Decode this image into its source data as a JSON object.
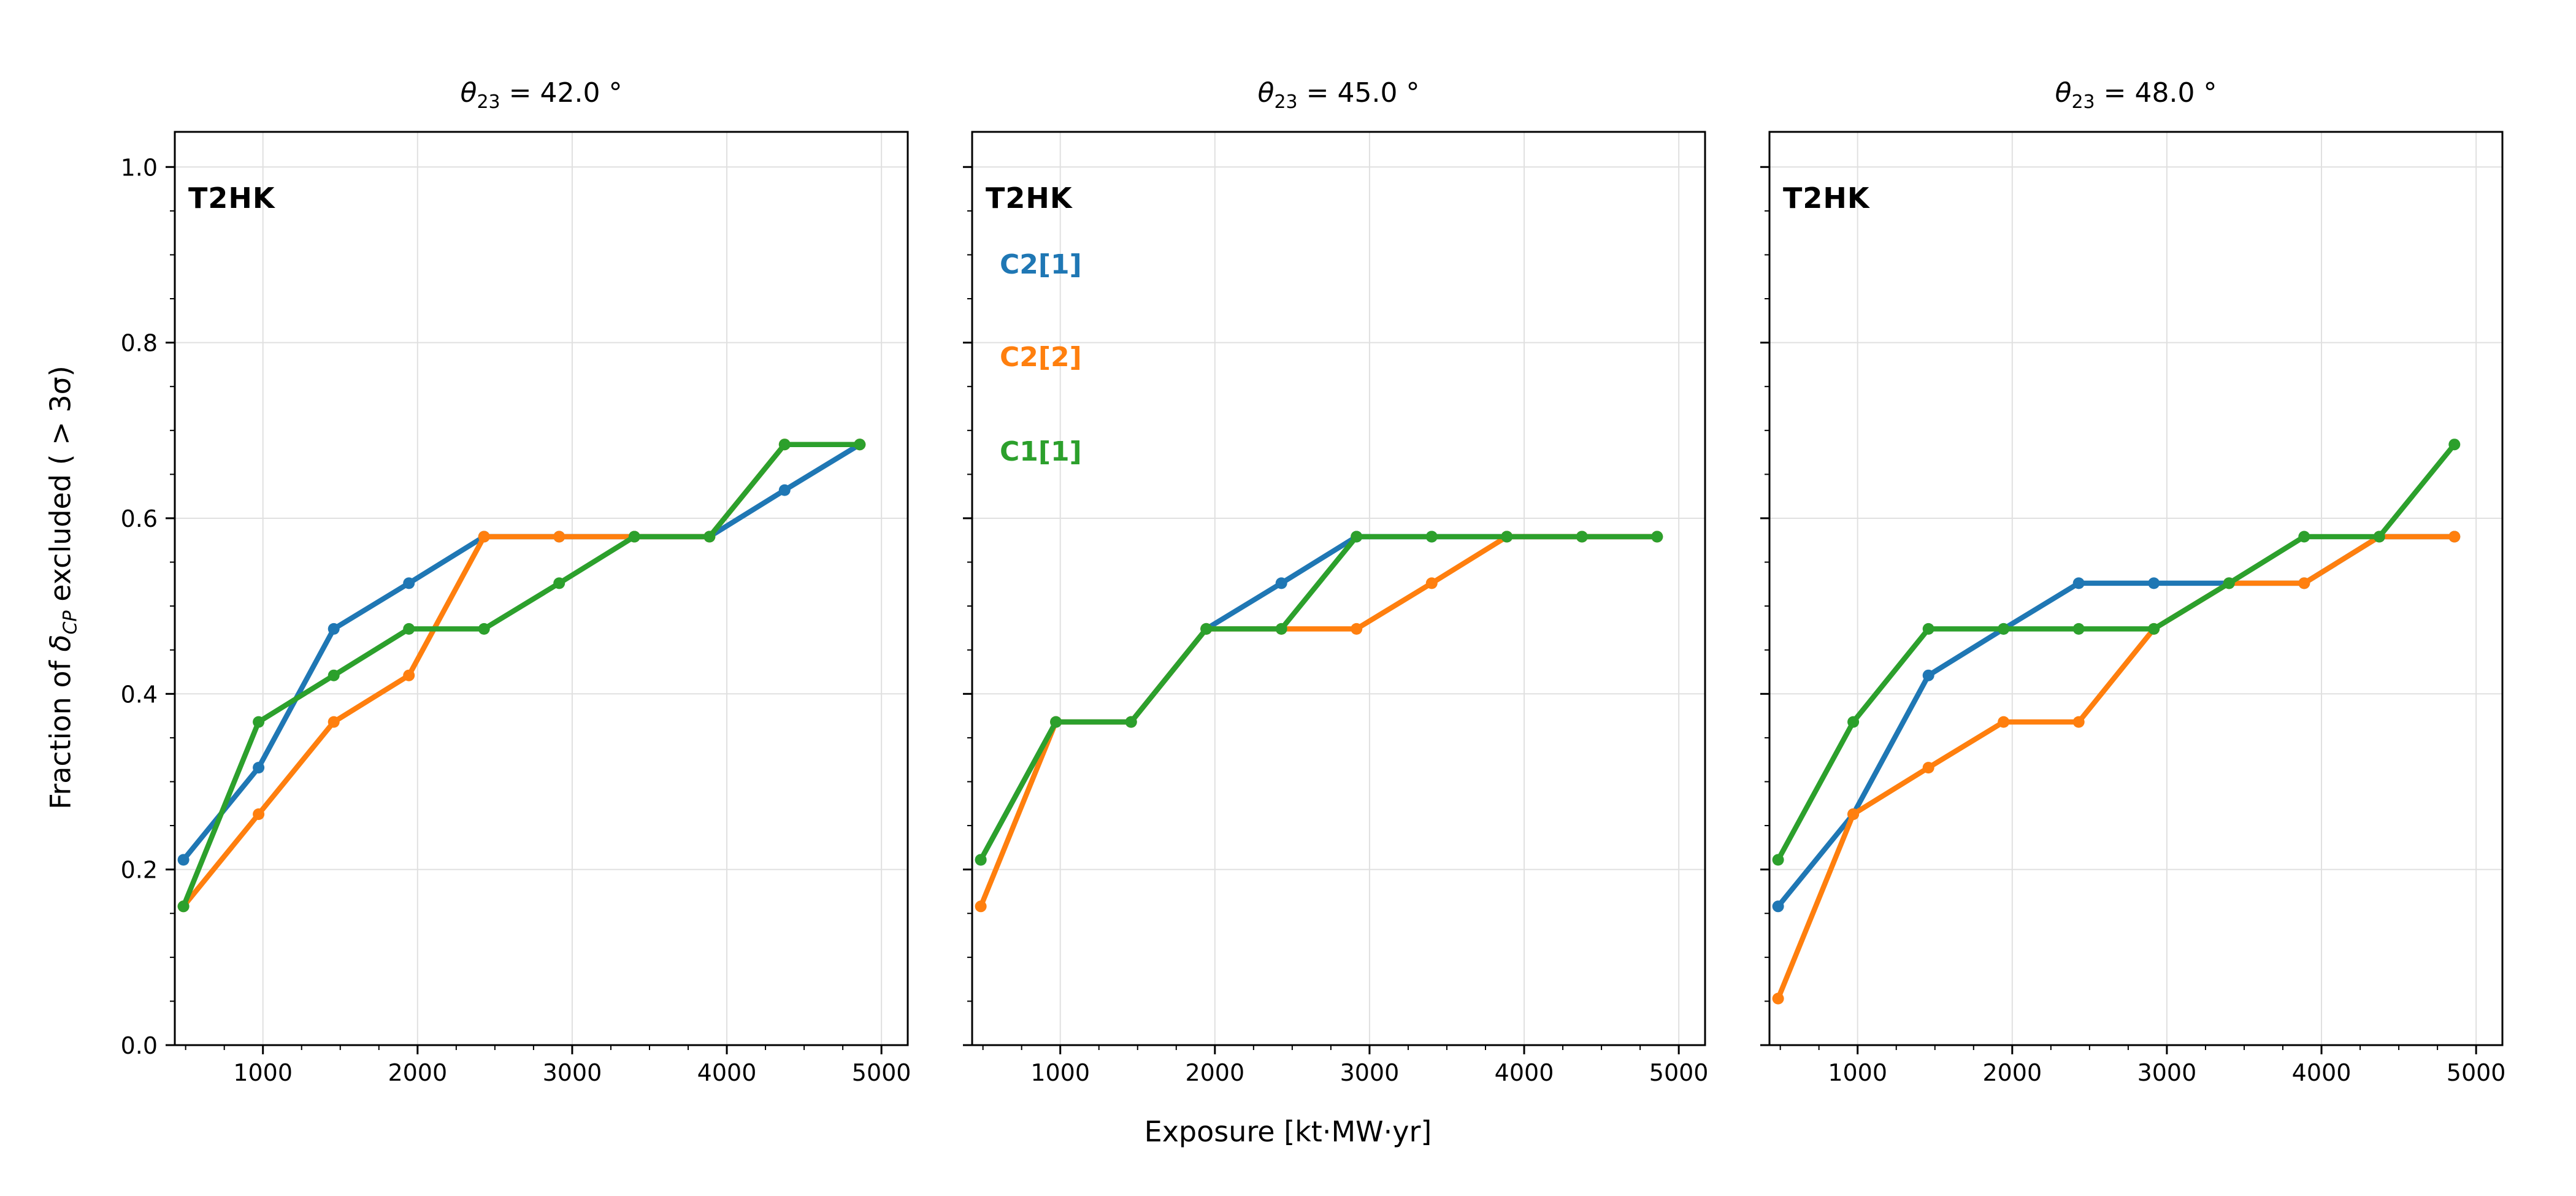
{
  "figure": {
    "experiment_label": "T2HK",
    "xlabel": "Exposure [kt·MW·yr]",
    "ylabel": {
      "pre": "Fraction of ",
      "sym": "δ",
      "sub": "CP",
      "post": " excluded ( > 3σ)"
    },
    "background_color": "#ffffff",
    "grid_color": "#e0e0e0",
    "spine_color": "#000000"
  },
  "legend": {
    "position": "inside middle panel, upper left",
    "items": [
      {
        "label": "C2[1]",
        "color": "#1f77b4"
      },
      {
        "label": "C2[2]",
        "color": "#ff7f0e"
      },
      {
        "label": "C1[1]",
        "color": "#2ca02c"
      }
    ]
  },
  "chart_data": {
    "type": "line",
    "x": [
      486,
      972,
      1458,
      1944,
      2430,
      2916,
      3402,
      3888,
      4374,
      4860
    ],
    "xlim": [
      430,
      5170
    ],
    "ylim": [
      0,
      1.04
    ],
    "grid": true,
    "x_ticks": [
      {
        "value": 1000,
        "label": "1000"
      },
      {
        "value": 2000,
        "label": "2000"
      },
      {
        "value": 3000,
        "label": "3000"
      },
      {
        "value": 4000,
        "label": "4000"
      },
      {
        "value": 5000,
        "label": "5000"
      }
    ],
    "y_ticks": [
      {
        "value": 0.0,
        "label": "0.0"
      },
      {
        "value": 0.2,
        "label": "0.2"
      },
      {
        "value": 0.4,
        "label": "0.4"
      },
      {
        "value": 0.6,
        "label": "0.6"
      },
      {
        "value": 0.8,
        "label": "0.8"
      },
      {
        "value": 1.0,
        "label": "1.0"
      }
    ],
    "panels": [
      {
        "title": {
          "base": "θ",
          "sub": "23",
          "suffix": " = 42.0 °"
        },
        "series": [
          {
            "name": "C2[1]",
            "color": "#1f77b4",
            "values": [
              0.211,
              0.316,
              0.474,
              0.526,
              0.579,
              0.579,
              0.579,
              0.579,
              0.632,
              0.684
            ]
          },
          {
            "name": "C2[2]",
            "color": "#ff7f0e",
            "values": [
              0.158,
              0.263,
              0.368,
              0.421,
              0.579,
              0.579,
              0.579,
              0.579,
              0.684,
              0.684
            ]
          },
          {
            "name": "C1[1]",
            "color": "#2ca02c",
            "values": [
              0.158,
              0.368,
              0.421,
              0.474,
              0.474,
              0.526,
              0.579,
              0.579,
              0.684,
              0.684
            ]
          }
        ]
      },
      {
        "title": {
          "base": "θ",
          "sub": "23",
          "suffix": " = 45.0 °"
        },
        "series": [
          {
            "name": "C2[1]",
            "color": "#1f77b4",
            "values": [
              0.211,
              0.368,
              0.368,
              0.474,
              0.526,
              0.579,
              0.579,
              0.579,
              0.579,
              0.579
            ]
          },
          {
            "name": "C2[2]",
            "color": "#ff7f0e",
            "values": [
              0.158,
              0.368,
              0.368,
              0.474,
              0.474,
              0.474,
              0.526,
              0.579,
              0.579,
              0.579
            ]
          },
          {
            "name": "C1[1]",
            "color": "#2ca02c",
            "values": [
              0.211,
              0.368,
              0.368,
              0.474,
              0.474,
              0.579,
              0.579,
              0.579,
              0.579,
              0.579
            ]
          }
        ]
      },
      {
        "title": {
          "base": "θ",
          "sub": "23",
          "suffix": " = 48.0 °"
        },
        "series": [
          {
            "name": "C2[1]",
            "color": "#1f77b4",
            "values": [
              0.158,
              0.263,
              0.421,
              0.474,
              0.526,
              0.526,
              0.526,
              0.526,
              0.579,
              0.579
            ]
          },
          {
            "name": "C2[2]",
            "color": "#ff7f0e",
            "values": [
              0.053,
              0.263,
              0.316,
              0.368,
              0.368,
              0.474,
              0.526,
              0.526,
              0.579,
              0.579
            ]
          },
          {
            "name": "C1[1]",
            "color": "#2ca02c",
            "values": [
              0.211,
              0.368,
              0.474,
              0.474,
              0.474,
              0.474,
              0.526,
              0.579,
              0.579,
              0.684
            ]
          }
        ]
      }
    ]
  }
}
